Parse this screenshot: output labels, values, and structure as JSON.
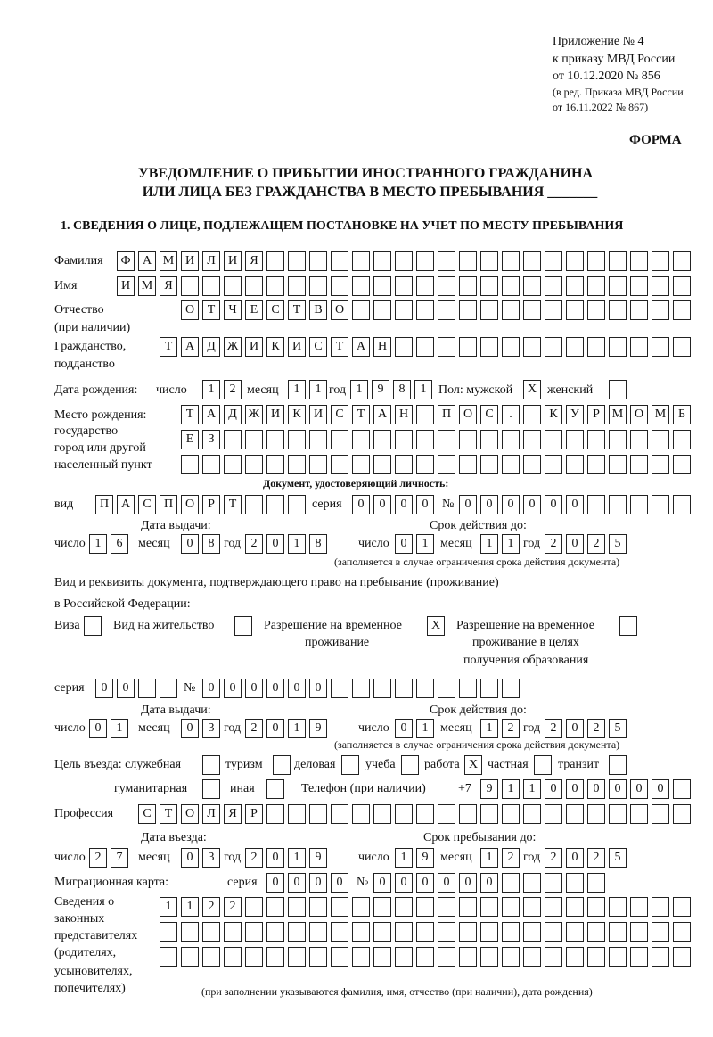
{
  "header": {
    "appendix": "Приложение № 4",
    "order": "к приказу МВД России",
    "date": "от 10.12.2020 № 856",
    "revision1": "(в ред. Приказа МВД России",
    "revision2": "от 16.11.2022 № 867)",
    "form": "ФОРМА",
    "title1": "УВЕДОМЛЕНИЕ О ПРИБЫТИИ ИНОСТРАННОГО ГРАЖДАНИНА",
    "title2": "ИЛИ ЛИЦА БЕЗ ГРАЖДАНСТВА В МЕСТО ПРЕБЫВАНИЯ _______",
    "section1": "1. СВЕДЕНИЯ О ЛИЦЕ, ПОДЛЕЖАЩЕМ ПОСТАНОВКЕ НА УЧЕТ ПО МЕСТУ ПРЕБЫВАНИЯ"
  },
  "labels": {
    "surname": "Фамилия",
    "name": "Имя",
    "patronymic": "Отчество",
    "patronymic2": "(при наличии)",
    "citizenship": "Гражданство,",
    "citizenship2": "подданство",
    "birth_date": "Дата рождения:",
    "day": "число",
    "month": "месяц",
    "year": "год",
    "sex": "Пол: мужской",
    "female": "женский",
    "birthplace1": "Место рождения:",
    "birthplace2": "государство",
    "birthplace3": "город или другой",
    "birthplace4": "населенный пункт",
    "id_doc": "Документ, удостоверяющий личность:",
    "kind": "вид",
    "series": "серия",
    "number": "№",
    "issue_date": "Дата выдачи:",
    "valid_until": "Срок действия до:",
    "validity_note": "(заполняется в случае ограничения срока действия документа)",
    "right_doc1": "Вид и реквизиты документа, подтверждающего право на пребывание (проживание)",
    "right_doc2": "в Российской Федерации:",
    "visa": "Виза",
    "residence": "Вид на жительство",
    "temp1": "Разрешение на временное",
    "temp2": "проживание",
    "edu1": "Разрешение на временное",
    "edu2": "проживание в целях",
    "edu3": "получения образования",
    "purpose": "Цель въезда: служебная",
    "tourism": "туризм",
    "business": "деловая",
    "study": "учеба",
    "work": "работа",
    "private": "частная",
    "transit": "транзит",
    "humanitarian": "гуманитарная",
    "other": "иная",
    "phone": "Телефон (при наличии)",
    "phone_prefix": "+7",
    "profession": "Профессия",
    "entry_date": "Дата въезда:",
    "stay_until": "Срок пребывания до:",
    "migration_card": "Миграционная карта:",
    "reps1": "Сведения о",
    "reps2": "законных",
    "reps3": "представителях",
    "reps4": "(родителях,",
    "reps5": "усыновителях,",
    "reps6": "попечителях)",
    "reps_note": "(при заполнении указываются фамилия, имя, отчество (при наличии), дата рождения)"
  },
  "values": {
    "surname": "ФАМИЛИЯ",
    "name": "ИМЯ",
    "patronymic": "ОТЧЕСТВО",
    "citizenship": "ТАДЖИКИСТАН",
    "birth_day": "12",
    "birth_month": "11",
    "birth_year": "1981",
    "sex_male": "X",
    "sex_female": "",
    "birthplace_row1": "ТАДЖИКИСТАН ПОС. КУРМОМБ",
    "birthplace_row2": "ЕЗ",
    "birthplace_row3": "",
    "id_kind": "ПАСПОРТ",
    "id_series": "0000",
    "id_number": "000000",
    "id_issue_day": "16",
    "id_issue_month": "08",
    "id_issue_year": "2018",
    "id_valid_day": "01",
    "id_valid_month": "11",
    "id_valid_year": "2025",
    "visa": "",
    "residence": "",
    "temp_residence": "X",
    "edu_residence": "",
    "right_series": "00",
    "right_number": "000000",
    "right_issue_day": "01",
    "right_issue_month": "03",
    "right_issue_year": "2019",
    "right_valid_day": "01",
    "right_valid_month": "12",
    "right_valid_year": "2025",
    "purpose_service": "",
    "purpose_tourism": "",
    "purpose_business": "",
    "purpose_study": "",
    "purpose_work": "X",
    "purpose_private": "",
    "purpose_transit": "",
    "purpose_humanitarian": "",
    "purpose_other": "",
    "phone": "911000000",
    "profession": "СТОЛЯР",
    "entry_day": "27",
    "entry_month": "03",
    "entry_year": "2019",
    "stay_day": "19",
    "stay_month": "12",
    "stay_year": "2025",
    "mc_series": "0000",
    "mc_number": "000000",
    "reps_row1": "1122",
    "reps_row2": "",
    "reps_row3": ""
  }
}
